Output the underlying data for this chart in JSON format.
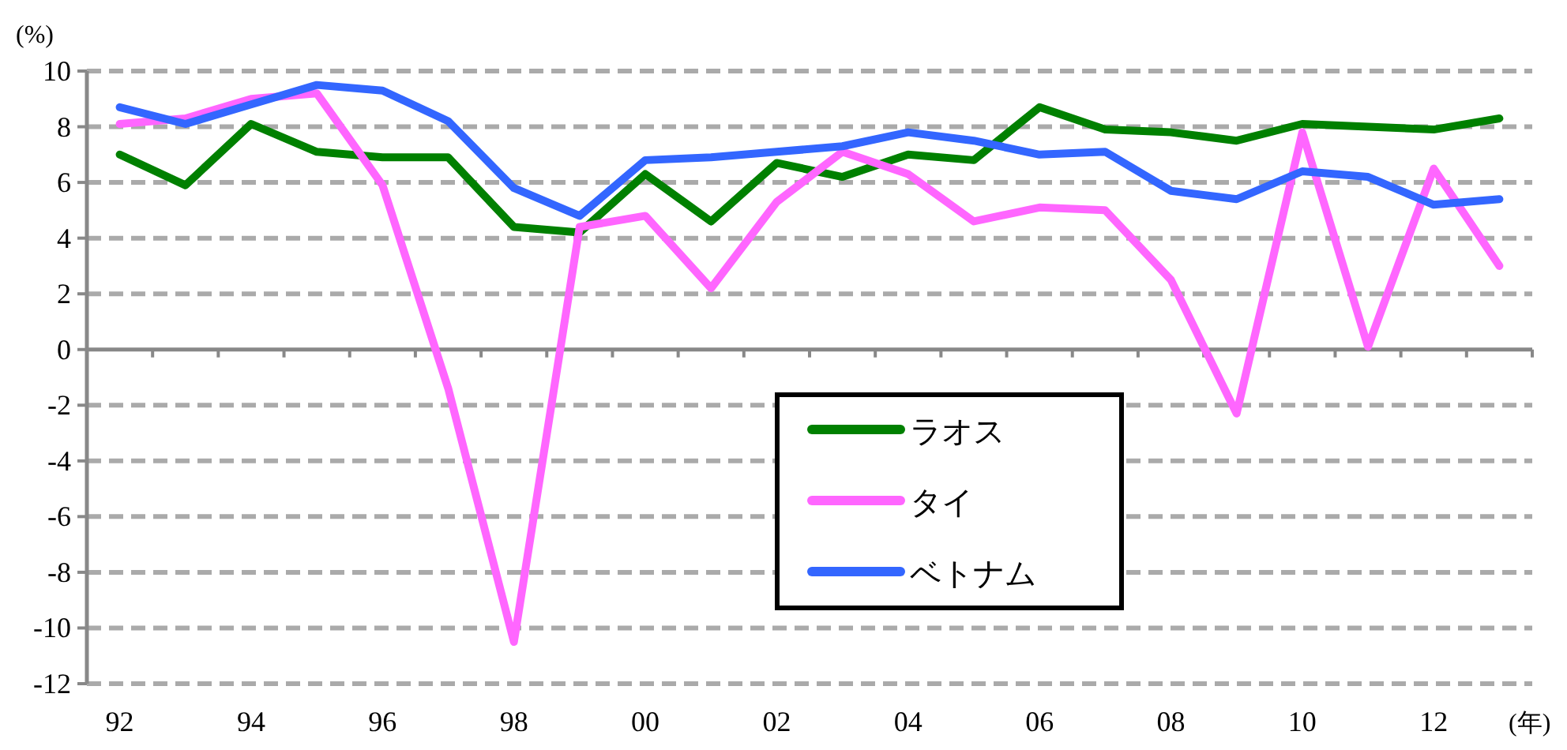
{
  "chart_data": {
    "type": "line",
    "xlabel": "(年)",
    "ylabel": "(%)",
    "categories": [
      "92",
      null,
      "94",
      null,
      "96",
      null,
      "98",
      null,
      "00",
      null,
      "02",
      null,
      "04",
      null,
      "06",
      null,
      "08",
      null,
      "10",
      null,
      "12",
      null
    ],
    "series": [
      {
        "name": "ラオス",
        "color": "#008000",
        "values": [
          7.0,
          5.9,
          8.1,
          7.1,
          6.9,
          6.9,
          4.4,
          4.2,
          6.3,
          4.6,
          6.7,
          6.2,
          7.0,
          6.8,
          8.7,
          7.9,
          7.8,
          7.5,
          8.1,
          8.0,
          7.9,
          8.3
        ]
      },
      {
        "name": "タイ",
        "color": "#ff66ff",
        "values": [
          8.1,
          8.3,
          9.0,
          9.2,
          5.9,
          -1.4,
          -10.5,
          4.4,
          4.8,
          2.2,
          5.3,
          7.1,
          6.3,
          4.6,
          5.1,
          5.0,
          2.5,
          -2.3,
          7.8,
          0.1,
          6.5,
          3.0
        ]
      },
      {
        "name": "ベトナム",
        "color": "#3366ff",
        "values": [
          8.7,
          8.1,
          8.8,
          9.5,
          9.3,
          8.2,
          5.8,
          4.8,
          6.8,
          6.9,
          7.1,
          7.3,
          7.8,
          7.5,
          7.0,
          7.1,
          5.7,
          5.4,
          6.4,
          6.2,
          5.2,
          5.4
        ]
      }
    ],
    "ylim": [
      -12,
      10
    ],
    "yticks": [
      -12,
      -10,
      -8,
      -6,
      -4,
      -2,
      0,
      2,
      4,
      6,
      8,
      10
    ],
    "grid": "y",
    "legend": "bottom",
    "line_style": "solid",
    "marker": "none"
  }
}
